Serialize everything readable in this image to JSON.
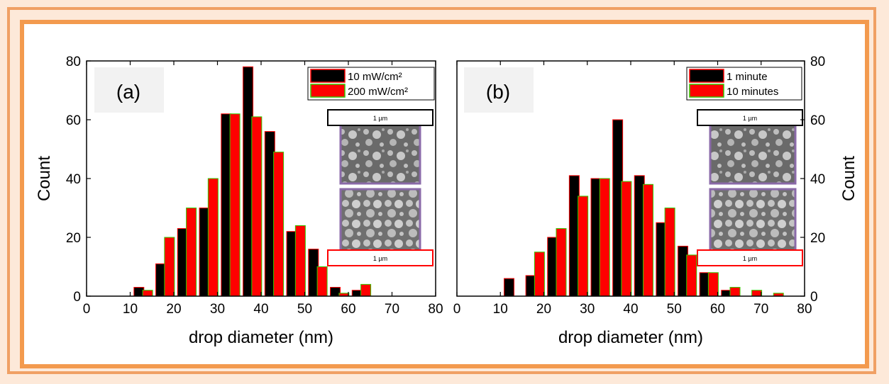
{
  "chart_data": [
    {
      "type": "bar",
      "panel_label": "(a)",
      "xlabel": "drop diameter (nm)",
      "ylabel": "Count",
      "xlim": [
        0,
        80
      ],
      "ylim": [
        0,
        80
      ],
      "x_ticks": [
        "0",
        "10",
        "20",
        "30",
        "40",
        "50",
        "60",
        "70",
        "80"
      ],
      "y_ticks": [
        "0",
        "20",
        "40",
        "60",
        "80"
      ],
      "yaxis_side": "left",
      "grid": false,
      "legend_position": "top-right",
      "series": [
        {
          "name": "10 mW/cm²",
          "color": "#000000",
          "edge": "#ff0000",
          "x": [
            12,
            17,
            22,
            27,
            32,
            37,
            42,
            47,
            52,
            57,
            62
          ],
          "values": [
            3,
            11,
            23,
            30,
            62,
            78,
            56,
            22,
            16,
            3,
            2
          ]
        },
        {
          "name": "200 mW/cm²",
          "color": "#ff0000",
          "edge": "#33cc00",
          "x": [
            14,
            19,
            24,
            29,
            34,
            39,
            44,
            49,
            54,
            59,
            64
          ],
          "values": [
            2,
            20,
            30,
            40,
            62,
            61,
            49,
            24,
            10,
            1,
            4
          ]
        }
      ],
      "insets": [
        {
          "scale_label": "1 µm",
          "scale_color": "#000000",
          "frame_color": "#8a6aa8"
        },
        {
          "scale_label": "1 µm",
          "scale_color": "#ff0000",
          "frame_color": "#8a6aa8"
        }
      ]
    },
    {
      "type": "bar",
      "panel_label": "(b)",
      "xlabel": "drop diameter (nm)",
      "ylabel": "Count",
      "xlim": [
        0,
        80
      ],
      "ylim": [
        0,
        80
      ],
      "x_ticks": [
        "0",
        "10",
        "20",
        "30",
        "40",
        "50",
        "60",
        "70",
        "80"
      ],
      "y_ticks": [
        "0",
        "20",
        "40",
        "60",
        "80"
      ],
      "yaxis_side": "right",
      "grid": false,
      "legend_position": "top-right",
      "series": [
        {
          "name": "1 minute",
          "color": "#000000",
          "edge": "#ff0000",
          "x": [
            12,
            17,
            22,
            27,
            32,
            37,
            42,
            47,
            52,
            57,
            62
          ],
          "values": [
            6,
            7,
            20,
            41,
            40,
            60,
            41,
            25,
            17,
            8,
            2
          ]
        },
        {
          "name": "10 minutes",
          "color": "#ff0000",
          "edge": "#33cc00",
          "x": [
            14,
            19,
            24,
            29,
            34,
            39,
            44,
            49,
            54,
            59,
            64,
            69,
            74
          ],
          "values": [
            0,
            15,
            23,
            34,
            40,
            39,
            38,
            30,
            14,
            8,
            3,
            2,
            1
          ]
        }
      ],
      "insets": [
        {
          "scale_label": "1 µm",
          "scale_color": "#000000",
          "frame_color": "#8a6aa8"
        },
        {
          "scale_label": "1 µm",
          "scale_color": "#ff0000",
          "frame_color": "#8a6aa8"
        }
      ]
    }
  ]
}
